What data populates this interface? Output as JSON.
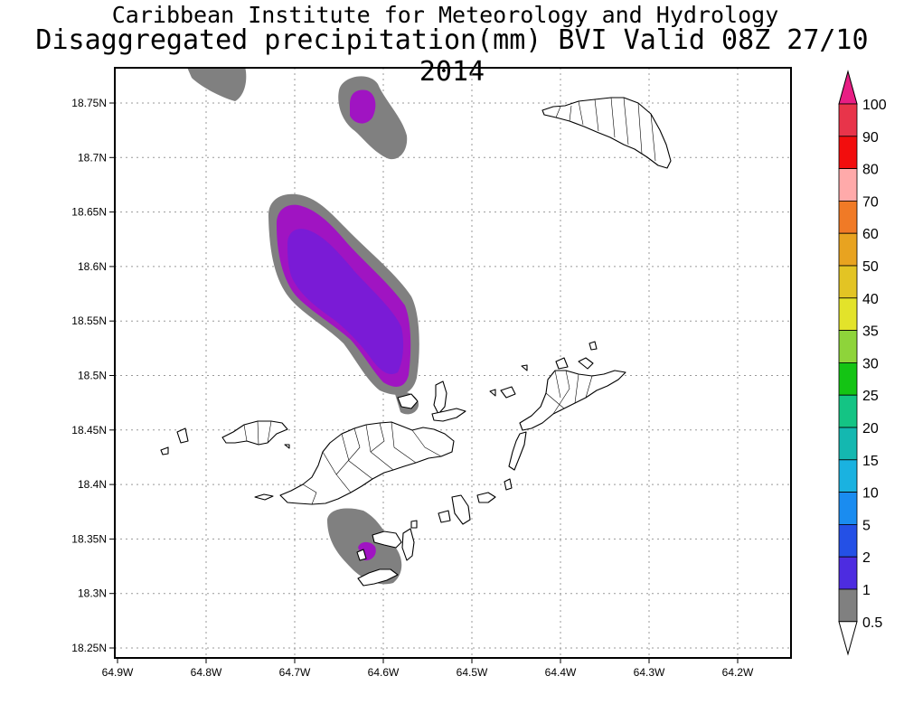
{
  "titles": {
    "line1": "Caribbean Institute for Meteorology and Hydrology",
    "line2": "Disaggregated precipitation(mm) BVI Valid 08Z 27/10 2014"
  },
  "map": {
    "lon_range": [
      -64.9,
      -64.15
    ],
    "lat_range": [
      18.24,
      18.8
    ],
    "grid": true,
    "lon_ticks": [
      {
        "value": -64.9,
        "label": "64.9W"
      },
      {
        "value": -64.8,
        "label": "64.8W"
      },
      {
        "value": -64.7,
        "label": "64.7W"
      },
      {
        "value": -64.6,
        "label": "64.6W"
      },
      {
        "value": -64.5,
        "label": "64.5W"
      },
      {
        "value": -64.4,
        "label": "64.4W"
      },
      {
        "value": -64.3,
        "label": "64.3W"
      },
      {
        "value": -64.2,
        "label": "64.2W"
      }
    ],
    "lat_ticks": [
      {
        "value": 18.75,
        "label": "18.75N"
      },
      {
        "value": 18.7,
        "label": "18.7N"
      },
      {
        "value": 18.65,
        "label": "18.65N"
      },
      {
        "value": 18.6,
        "label": "18.6N"
      },
      {
        "value": 18.55,
        "label": "18.55N"
      },
      {
        "value": 18.5,
        "label": "18.5N"
      },
      {
        "value": 18.45,
        "label": "18.45N"
      },
      {
        "value": 18.4,
        "label": "18.4N"
      },
      {
        "value": 18.35,
        "label": "18.35N"
      },
      {
        "value": 18.3,
        "label": "18.3N"
      },
      {
        "value": 18.25,
        "label": "18.25N"
      }
    ]
  },
  "colorbar": {
    "levels": [
      {
        "label": "100",
        "color": "#e8344a"
      },
      {
        "label": "90",
        "color": "#f20d0d"
      },
      {
        "label": "80",
        "color": "#ffaaaa"
      },
      {
        "label": "70",
        "color": "#f07a26"
      },
      {
        "label": "60",
        "color": "#e8a320"
      },
      {
        "label": "50",
        "color": "#e3c424"
      },
      {
        "label": "40",
        "color": "#e3e32a"
      },
      {
        "label": "35",
        "color": "#8ed43a"
      },
      {
        "label": "30",
        "color": "#14c414"
      },
      {
        "label": "25",
        "color": "#14c484"
      },
      {
        "label": "20",
        "color": "#14b8b0"
      },
      {
        "label": "15",
        "color": "#1ab2e0"
      },
      {
        "label": "10",
        "color": "#1a8cf0"
      },
      {
        "label": "5",
        "color": "#2450e6"
      },
      {
        "label": "2",
        "color": "#4d2ce0"
      },
      {
        "label": "1",
        "color": "#7a1bd6"
      },
      {
        "label": "0.5",
        "color": "#a014c2"
      }
    ],
    "top_arrow_color": "#e81e84",
    "bottom_band_color": "#808080",
    "bottom_arrow_color": "#ffffff"
  },
  "colors": {
    "shade_gray": "#808080",
    "shade_magenta": "#a014c2",
    "shade_purple": "#7a1bd6",
    "land": "#ffffff",
    "outline": "#000000"
  }
}
